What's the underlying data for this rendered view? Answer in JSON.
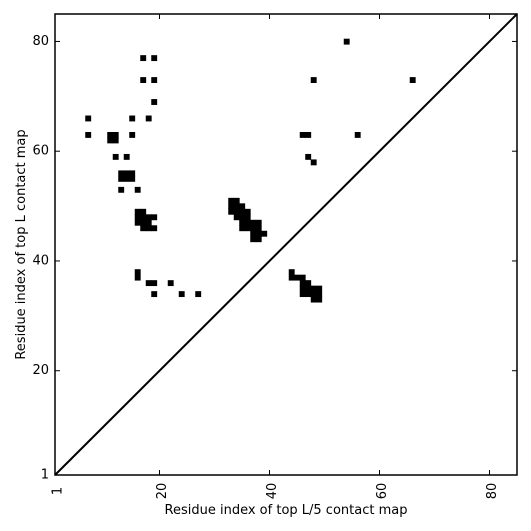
{
  "chart_data": {
    "type": "heatmap",
    "title": "",
    "xlabel": "Residue index of top L/5 contact map",
    "ylabel": "Residue index of top L contact map",
    "xlim": [
      1,
      85
    ],
    "ylim": [
      1,
      85
    ],
    "xticks": [
      1,
      20,
      40,
      60,
      80
    ],
    "yticks": [
      1,
      20,
      40,
      60,
      80
    ],
    "grid": false,
    "diagonal": true,
    "cell_color": "#000000",
    "contacts": [
      [
        54,
        80
      ],
      [
        17,
        77
      ],
      [
        19,
        77
      ],
      [
        17,
        73
      ],
      [
        19,
        73
      ],
      [
        48,
        73
      ],
      [
        66,
        73
      ],
      [
        19,
        69
      ],
      [
        7,
        66
      ],
      [
        15,
        66
      ],
      [
        18,
        66
      ],
      [
        7,
        63
      ],
      [
        15,
        63
      ],
      [
        46,
        63
      ],
      [
        47,
        63
      ],
      [
        56,
        63
      ],
      [
        11,
        63
      ],
      [
        12,
        63
      ],
      [
        11,
        62
      ],
      [
        12,
        62
      ],
      [
        12,
        59
      ],
      [
        14,
        59
      ],
      [
        47,
        59
      ],
      [
        48,
        58
      ],
      [
        13,
        56
      ],
      [
        14,
        56
      ],
      [
        15,
        56
      ],
      [
        13,
        55
      ],
      [
        14,
        55
      ],
      [
        15,
        55
      ],
      [
        13,
        53
      ],
      [
        16,
        53
      ],
      [
        33,
        51
      ],
      [
        34,
        51
      ],
      [
        33,
        50
      ],
      [
        34,
        50
      ],
      [
        35,
        50
      ],
      [
        33,
        49
      ],
      [
        34,
        49
      ],
      [
        35,
        49
      ],
      [
        36,
        49
      ],
      [
        34,
        48
      ],
      [
        35,
        48
      ],
      [
        36,
        48
      ],
      [
        35,
        47
      ],
      [
        36,
        47
      ],
      [
        37,
        47
      ],
      [
        38,
        47
      ],
      [
        35,
        46
      ],
      [
        36,
        46
      ],
      [
        37,
        46
      ],
      [
        38,
        46
      ],
      [
        37,
        45
      ],
      [
        38,
        45
      ],
      [
        39,
        45
      ],
      [
        37,
        44
      ],
      [
        38,
        44
      ],
      [
        16,
        49
      ],
      [
        17,
        49
      ],
      [
        16,
        48
      ],
      [
        17,
        48
      ],
      [
        18,
        48
      ],
      [
        19,
        48
      ],
      [
        16,
        47
      ],
      [
        17,
        47
      ],
      [
        18,
        47
      ],
      [
        17,
        46
      ],
      [
        18,
        46
      ],
      [
        19,
        46
      ],
      [
        16,
        38
      ],
      [
        16,
        37
      ],
      [
        18,
        36
      ],
      [
        19,
        36
      ],
      [
        22,
        36
      ],
      [
        19,
        34
      ],
      [
        24,
        34
      ],
      [
        27,
        34
      ],
      [
        44,
        38
      ],
      [
        44,
        37
      ],
      [
        45,
        37
      ],
      [
        46,
        37
      ],
      [
        46,
        36
      ],
      [
        47,
        36
      ],
      [
        46,
        35
      ],
      [
        47,
        35
      ],
      [
        48,
        35
      ],
      [
        49,
        35
      ],
      [
        46,
        34
      ],
      [
        47,
        34
      ],
      [
        48,
        34
      ],
      [
        49,
        34
      ],
      [
        48,
        33
      ],
      [
        49,
        33
      ]
    ]
  }
}
